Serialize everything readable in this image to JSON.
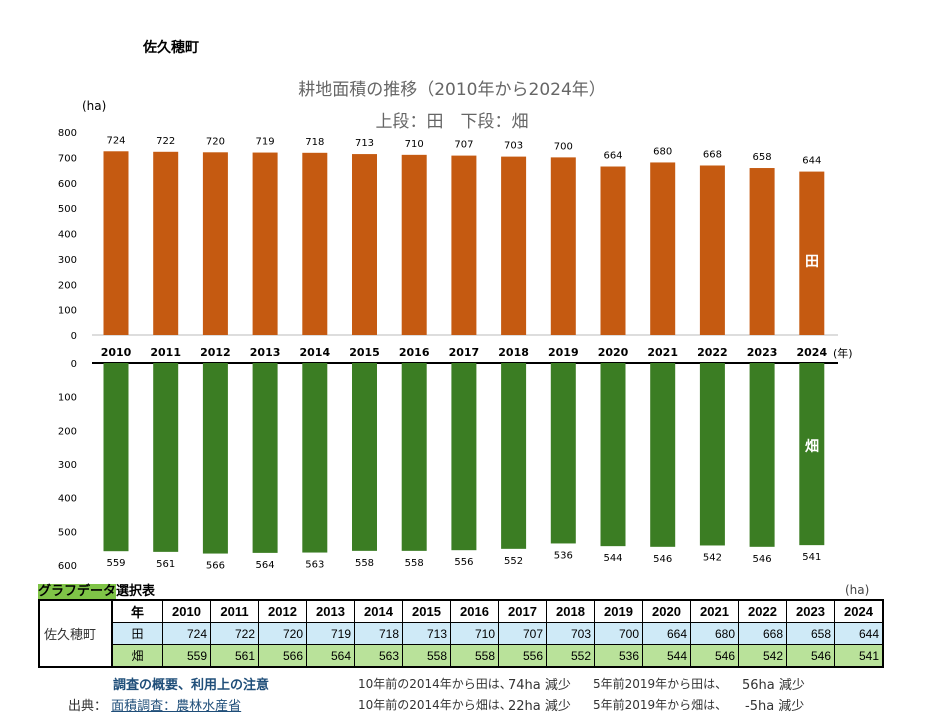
{
  "town": "佐久穂町",
  "chart_data": {
    "type": "bar",
    "title": "耕地面積の推移（2010年から2024年）",
    "subtitle": "上段：田　下段：畑",
    "ylabel": "(ha)",
    "xlabel": "(年)",
    "categories": [
      "2010",
      "2011",
      "2012",
      "2013",
      "2014",
      "2015",
      "2016",
      "2017",
      "2018",
      "2019",
      "2020",
      "2021",
      "2022",
      "2023",
      "2024"
    ],
    "series": [
      {
        "name": "田",
        "values": [
          724,
          722,
          720,
          719,
          718,
          713,
          710,
          707,
          703,
          700,
          664,
          680,
          668,
          658,
          644
        ],
        "color": "#c55a11",
        "ylim": [
          0,
          800
        ],
        "ticks": [
          0,
          100,
          200,
          300,
          400,
          500,
          600,
          700,
          800
        ]
      },
      {
        "name": "畑",
        "values": [
          559,
          561,
          566,
          564,
          563,
          558,
          558,
          556,
          552,
          536,
          544,
          546,
          542,
          546,
          541
        ],
        "color": "#3b7d23",
        "ylim": [
          0,
          600
        ],
        "ticks": [
          0,
          100,
          200,
          300,
          400,
          500,
          600
        ],
        "inverted": true
      }
    ]
  },
  "table": {
    "title_highlight": "グラフデータ",
    "title_rest": "選択表",
    "unit": "(ha)",
    "row_header": "佐久穂町",
    "year_label": "年",
    "rice_label": "田",
    "field_label": "畑"
  },
  "notes": {
    "link1": "調査の概要、利用上の注意",
    "source_label": "出典：",
    "link2": "面積調査：農林水産省",
    "r1a": "10年前の2014年から田は、",
    "r1b": "74ha 減少",
    "r1c": "5年前2019年から田は、",
    "r1d": "56ha 減少",
    "r2a": "10年前の2014年から畑は、",
    "r2b": "22ha 減少",
    "r2c": "5年前2019年から畑は、",
    "r2d": "-5ha 減少"
  }
}
